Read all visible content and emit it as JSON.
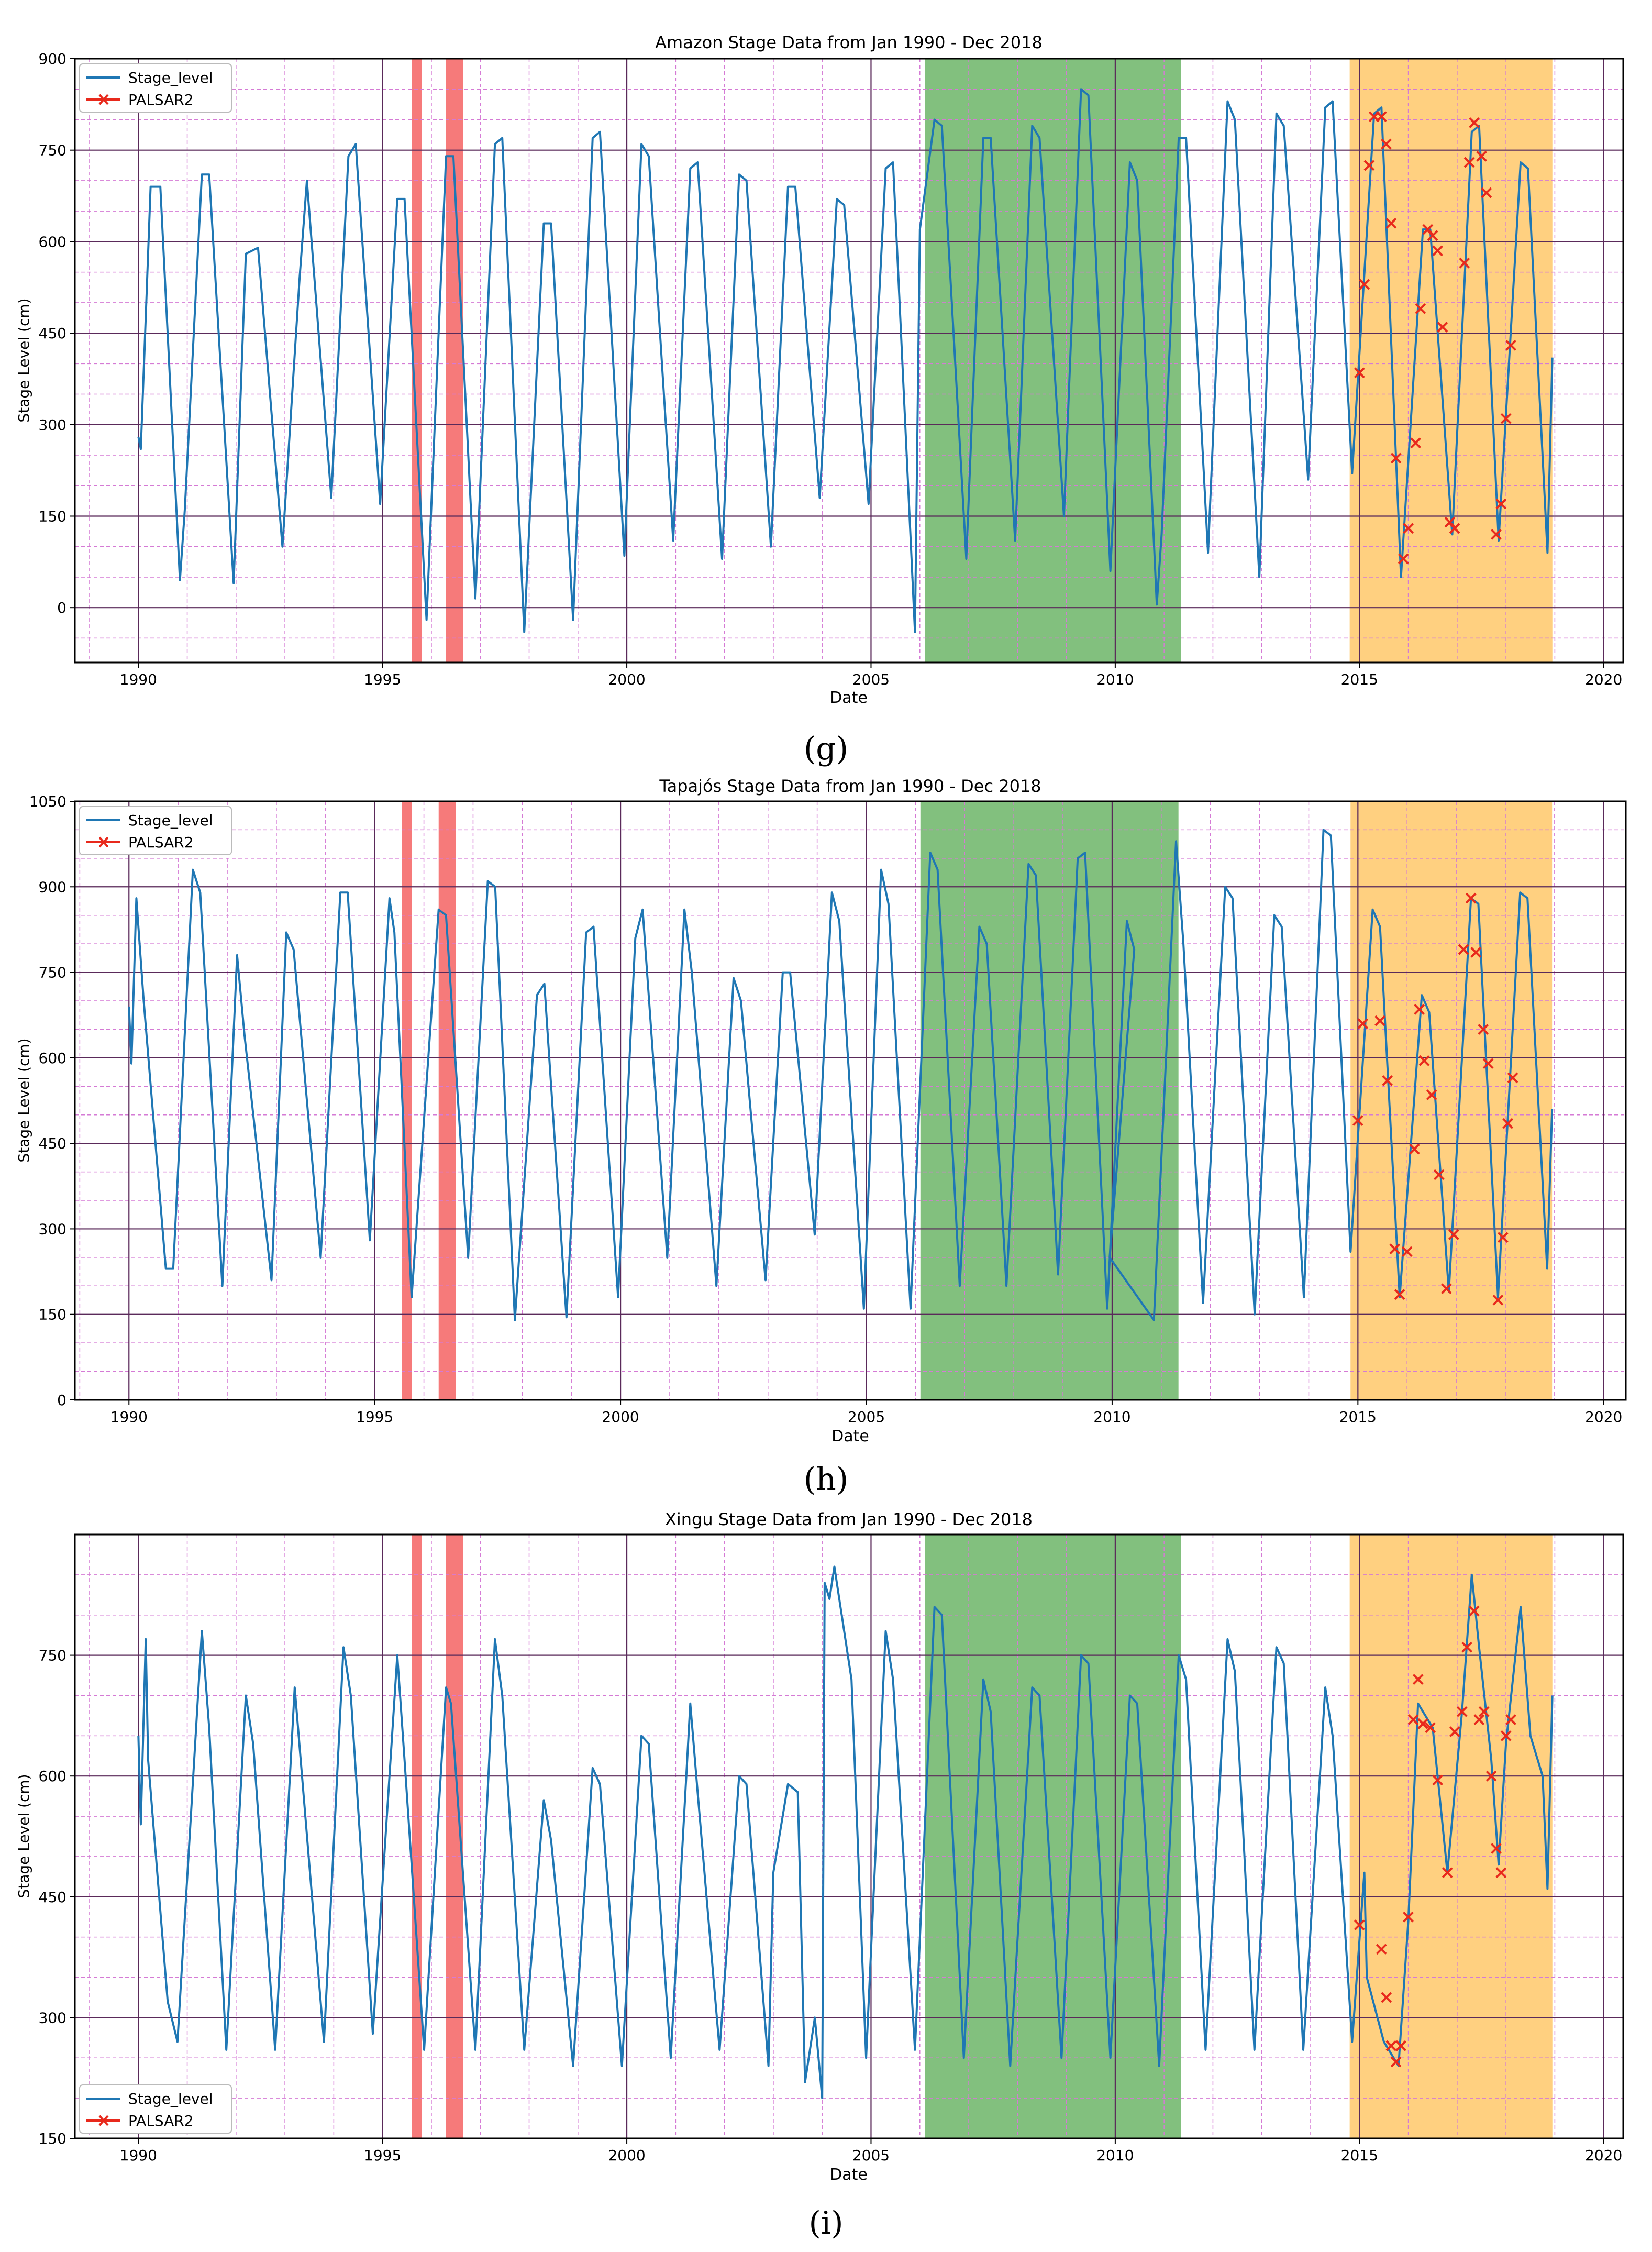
{
  "chart_data": [
    {
      "type": "line",
      "panel_label": "(g)",
      "title": "Amazon Stage Data from Jan 1990 - Dec 2018",
      "xlabel": "Date",
      "ylabel": "Stage Level (cm)",
      "xlim": [
        1988.7,
        2020.4
      ],
      "ylim": [
        -90,
        900
      ],
      "xticks": [
        1990,
        1995,
        2000,
        2005,
        2010,
        2015,
        2020
      ],
      "yticks": [
        0,
        150,
        300,
        450,
        600,
        750,
        900
      ],
      "grid": true,
      "legend": {
        "position": "top-left",
        "entries": [
          "Stage_level",
          "PALSAR2"
        ]
      },
      "shaded_spans": [
        {
          "from": 1995.6,
          "to": 1995.8,
          "color": "#f45454"
        },
        {
          "from": 1996.3,
          "to": 1996.65,
          "color": "#f45454"
        },
        {
          "from": 2006.1,
          "to": 2011.35,
          "color": "#5fae5a"
        },
        {
          "from": 2014.8,
          "to": 2018.95,
          "color": "#ffc35c"
        }
      ],
      "series": [
        {
          "name": "Stage_level",
          "color": "#1f77b4",
          "x": [
            1990.0,
            1990.05,
            1990.25,
            1990.45,
            1990.85,
            1990.95,
            1991.3,
            1991.45,
            1991.95,
            1992.2,
            1992.45,
            1992.95,
            1993.3,
            1993.45,
            1993.95,
            1994.3,
            1994.45,
            1994.95,
            1995.3,
            1995.45,
            1995.9,
            1996.3,
            1996.45,
            1996.9,
            1997.3,
            1997.45,
            1997.9,
            1998.3,
            1998.45,
            1998.9,
            1999.3,
            1999.45,
            1999.95,
            2000.3,
            2000.45,
            2000.95,
            2001.3,
            2001.45,
            2001.95,
            2002.3,
            2002.45,
            2002.95,
            2003.3,
            2003.45,
            2003.95,
            2004.3,
            2004.45,
            2004.95,
            2005.3,
            2005.45,
            2005.9,
            2006.0,
            2006.3,
            2006.45,
            2006.95,
            2007.3,
            2007.45,
            2007.95,
            2008.3,
            2008.45,
            2008.95,
            2009.3,
            2009.45,
            2009.9,
            2010.3,
            2010.45,
            2010.85,
            2010.95,
            2011.3,
            2011.45,
            2011.9,
            2012.3,
            2012.45,
            2012.95,
            2013.3,
            2013.45,
            2013.95,
            2014.3,
            2014.45,
            2014.85,
            2015.3,
            2015.45,
            2015.85,
            2016.3,
            2016.45,
            2016.9,
            2017.3,
            2017.45,
            2017.85,
            2018.3,
            2018.45,
            2018.85,
            2018.95
          ],
          "y": [
            280,
            260,
            690,
            690,
            45,
            160,
            710,
            710,
            40,
            580,
            590,
            100,
            540,
            700,
            180,
            740,
            760,
            170,
            670,
            670,
            -20,
            740,
            740,
            15,
            760,
            770,
            -40,
            630,
            630,
            -20,
            770,
            780,
            85,
            760,
            740,
            110,
            720,
            730,
            80,
            710,
            700,
            100,
            690,
            690,
            180,
            670,
            660,
            170,
            720,
            730,
            -40,
            620,
            800,
            790,
            80,
            770,
            770,
            110,
            790,
            770,
            150,
            850,
            840,
            60,
            730,
            700,
            5,
            120,
            770,
            770,
            90,
            830,
            800,
            50,
            810,
            790,
            210,
            820,
            830,
            220,
            810,
            820,
            50,
            620,
            620,
            120,
            780,
            790,
            110,
            730,
            720,
            90,
            410
          ]
        },
        {
          "name": "PALSAR2",
          "color": "#e8291c",
          "marker": "x",
          "x": [
            2015.0,
            2015.1,
            2015.2,
            2015.3,
            2015.45,
            2015.55,
            2015.65,
            2015.75,
            2015.9,
            2016.0,
            2016.15,
            2016.25,
            2016.4,
            2016.5,
            2016.6,
            2016.7,
            2016.85,
            2016.95,
            2017.15,
            2017.25,
            2017.35,
            2017.5,
            2017.6,
            2017.8,
            2017.9,
            2018.0,
            2018.1
          ],
          "y": [
            385,
            530,
            725,
            805,
            805,
            760,
            630,
            245,
            80,
            130,
            270,
            490,
            620,
            610,
            585,
            460,
            140,
            130,
            565,
            730,
            795,
            740,
            680,
            120,
            170,
            310,
            430
          ]
        }
      ]
    },
    {
      "type": "line",
      "panel_label": "(h)",
      "title": "Tapajós Stage Data from Jan 1990 - Dec 2018",
      "xlabel": "Date",
      "ylabel": "Stage Level (cm)",
      "xlim": [
        1988.9,
        2020.45
      ],
      "ylim": [
        0,
        1050
      ],
      "xticks": [
        1990,
        1995,
        2000,
        2005,
        2010,
        2015,
        2020
      ],
      "yticks": [
        0,
        150,
        300,
        450,
        600,
        750,
        900,
        1050
      ],
      "grid": true,
      "legend": {
        "position": "top-left",
        "entries": [
          "Stage_level",
          "PALSAR2"
        ]
      },
      "shaded_spans": [
        {
          "from": 1995.55,
          "to": 1995.75,
          "color": "#f45454"
        },
        {
          "from": 1996.3,
          "to": 1996.65,
          "color": "#f45454"
        },
        {
          "from": 2006.1,
          "to": 2011.35,
          "color": "#5fae5a"
        },
        {
          "from": 2014.85,
          "to": 2018.95,
          "color": "#ffc35c"
        }
      ],
      "series": [
        {
          "name": "Stage_level",
          "color": "#1f77b4",
          "x": [
            1990.0,
            1990.05,
            1990.15,
            1990.3,
            1990.75,
            1990.9,
            1991.3,
            1991.45,
            1991.9,
            1992.2,
            1992.35,
            1992.9,
            1993.2,
            1993.35,
            1993.9,
            1994.3,
            1994.45,
            1994.9,
            1995.3,
            1995.4,
            1995.75,
            1996.3,
            1996.45,
            1996.9,
            1997.3,
            1997.45,
            1997.85,
            1998.3,
            1998.45,
            1998.9,
            1999.3,
            1999.45,
            1999.95,
            2000.3,
            2000.45,
            2000.95,
            2001.3,
            2001.45,
            2001.95,
            2002.3,
            2002.45,
            2002.95,
            2003.3,
            2003.45,
            2003.95,
            2004.3,
            2004.45,
            2004.95,
            2005.3,
            2005.45,
            2005.9,
            2006.3,
            2006.45,
            2006.9,
            2007.3,
            2007.45,
            2007.85,
            2008.3,
            2008.45,
            2008.9,
            2009.3,
            2009.45,
            2009.9,
            2010.3,
            2010.45,
            2009.95,
            2010.85,
            2011.3,
            2011.45,
            2011.85,
            2012.3,
            2012.45,
            2012.9,
            2013.3,
            2013.45,
            2013.9,
            2014.3,
            2014.45,
            2014.85,
            2015.3,
            2015.45,
            2015.85,
            2016.3,
            2016.45,
            2016.85,
            2017.3,
            2017.45,
            2017.85,
            2018.3,
            2018.45,
            2018.85,
            2018.95
          ],
          "y": [
            690,
            590,
            880,
            700,
            230,
            230,
            930,
            890,
            200,
            780,
            640,
            210,
            820,
            790,
            250,
            890,
            890,
            280,
            880,
            820,
            180,
            860,
            850,
            250,
            910,
            900,
            140,
            710,
            730,
            145,
            820,
            830,
            180,
            810,
            860,
            250,
            860,
            750,
            200,
            740,
            700,
            210,
            750,
            750,
            290,
            890,
            840,
            160,
            930,
            870,
            160,
            960,
            930,
            200,
            830,
            800,
            200,
            940,
            920,
            220,
            950,
            960,
            160,
            840,
            790,
            250,
            140,
            980,
            800,
            170,
            900,
            880,
            150,
            850,
            830,
            180,
            1000,
            990,
            260,
            860,
            830,
            180,
            710,
            680,
            190,
            880,
            870,
            180,
            890,
            880,
            230,
            510
          ]
        },
        {
          "name": "PALSAR2",
          "color": "#e8291c",
          "marker": "x",
          "x": [
            2015.0,
            2015.1,
            2015.45,
            2015.6,
            2015.75,
            2015.85,
            2016.0,
            2016.15,
            2016.25,
            2016.35,
            2016.5,
            2016.65,
            2016.8,
            2016.95,
            2017.15,
            2017.3,
            2017.4,
            2017.55,
            2017.65,
            2017.85,
            2017.95,
            2018.05,
            2018.15
          ],
          "y": [
            490,
            660,
            665,
            560,
            265,
            185,
            260,
            440,
            685,
            595,
            535,
            395,
            195,
            290,
            790,
            880,
            785,
            650,
            590,
            175,
            285,
            485,
            565
          ]
        }
      ]
    },
    {
      "type": "line",
      "panel_label": "(i)",
      "title": "Xingu Stage Data from Jan 1990 - Dec 2018",
      "xlabel": "Date",
      "ylabel": "Stage Level (cm)",
      "xlim": [
        1988.7,
        2020.4
      ],
      "ylim": [
        150,
        900
      ],
      "xticks": [
        1990,
        1995,
        2000,
        2005,
        2010,
        2015,
        2020
      ],
      "yticks": [
        150,
        300,
        450,
        600,
        750
      ],
      "grid": true,
      "legend": {
        "position": "bottom-left",
        "entries": [
          "Stage_level",
          "PALSAR2"
        ]
      },
      "shaded_spans": [
        {
          "from": 1995.6,
          "to": 1995.8,
          "color": "#f45454"
        },
        {
          "from": 1996.3,
          "to": 1996.65,
          "color": "#f45454"
        },
        {
          "from": 2006.1,
          "to": 2011.35,
          "color": "#5fae5a"
        },
        {
          "from": 2014.8,
          "to": 2018.95,
          "color": "#ffc35c"
        }
      ],
      "series": [
        {
          "name": "Stage_level",
          "color": "#1f77b4",
          "x": [
            1990.0,
            1990.05,
            1990.15,
            1990.2,
            1990.6,
            1990.8,
            1991.3,
            1991.45,
            1991.8,
            1992.2,
            1992.35,
            1992.8,
            1993.2,
            1993.35,
            1993.8,
            1994.2,
            1994.35,
            1994.8,
            1995.3,
            1995.45,
            1995.85,
            1996.3,
            1996.4,
            1996.9,
            1997.3,
            1997.45,
            1997.9,
            1998.3,
            1998.45,
            1998.9,
            1999.3,
            1999.45,
            1999.9,
            2000.3,
            2000.45,
            2000.9,
            2001.3,
            2001.45,
            2001.9,
            2002.3,
            2002.45,
            2002.9,
            2003.0,
            2003.3,
            2003.5,
            2003.65,
            2003.85,
            2004.0,
            2004.05,
            2004.15,
            2004.25,
            2004.6,
            2004.9,
            2005.3,
            2005.45,
            2005.9,
            2006.3,
            2006.45,
            2006.9,
            2007.3,
            2007.45,
            2007.85,
            2008.3,
            2008.45,
            2008.9,
            2009.3,
            2009.45,
            2009.9,
            2010.3,
            2010.45,
            2010.9,
            2011.3,
            2011.45,
            2011.85,
            2012.3,
            2012.45,
            2012.85,
            2013.3,
            2013.45,
            2013.85,
            2014.3,
            2014.45,
            2014.85,
            2015.1,
            2015.15,
            2015.5,
            2015.8,
            2016.0,
            2016.2,
            2016.5,
            2016.8,
            2017.1,
            2017.3,
            2017.45,
            2017.7,
            2017.85,
            2018.0,
            2018.3,
            2018.5,
            2018.75,
            2018.85,
            2018.95
          ],
          "y": [
            650,
            540,
            770,
            620,
            320,
            270,
            780,
            660,
            260,
            700,
            640,
            260,
            710,
            600,
            270,
            760,
            700,
            280,
            750,
            620,
            260,
            710,
            690,
            260,
            770,
            700,
            260,
            570,
            520,
            240,
            610,
            590,
            240,
            650,
            640,
            250,
            690,
            580,
            260,
            600,
            590,
            240,
            480,
            590,
            580,
            220,
            300,
            200,
            840,
            820,
            860,
            720,
            250,
            780,
            720,
            260,
            810,
            800,
            250,
            720,
            680,
            240,
            710,
            700,
            250,
            750,
            740,
            250,
            700,
            690,
            240,
            750,
            720,
            260,
            770,
            730,
            260,
            760,
            740,
            260,
            710,
            650,
            270,
            480,
            350,
            270,
            240,
            420,
            690,
            660,
            480,
            680,
            850,
            760,
            620,
            490,
            640,
            810,
            650,
            600,
            460,
            700
          ]
        },
        {
          "name": "PALSAR2",
          "color": "#e8291c",
          "marker": "x",
          "x": [
            2015.0,
            2015.45,
            2015.55,
            2015.65,
            2015.75,
            2015.85,
            2016.0,
            2016.1,
            2016.2,
            2016.3,
            2016.45,
            2016.6,
            2016.8,
            2016.95,
            2017.1,
            2017.2,
            2017.35,
            2017.45,
            2017.55,
            2017.7,
            2017.8,
            2017.9,
            2018.0,
            2018.1
          ],
          "y": [
            415,
            385,
            325,
            265,
            245,
            265,
            425,
            670,
            720,
            665,
            660,
            595,
            480,
            655,
            680,
            760,
            805,
            670,
            680,
            600,
            510,
            480,
            650,
            670
          ]
        }
      ]
    }
  ]
}
